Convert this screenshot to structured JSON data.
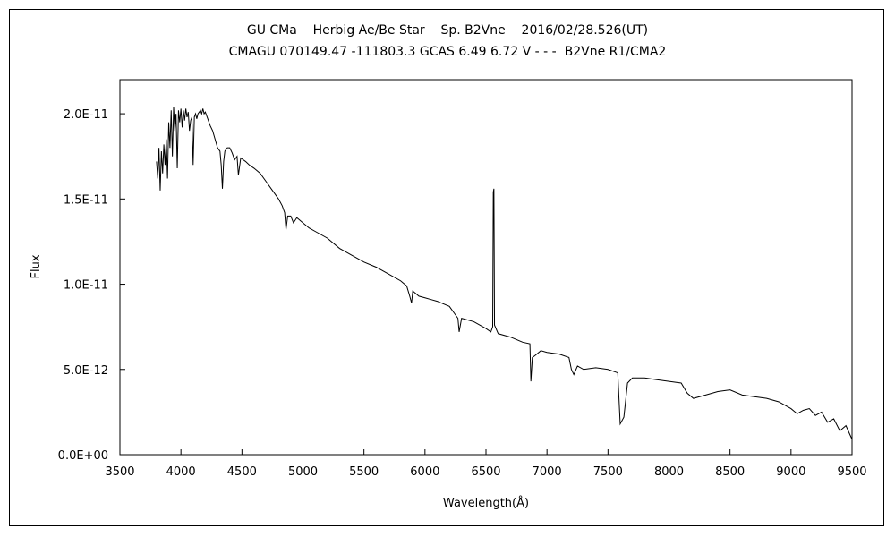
{
  "chart_data": {
    "type": "line",
    "title": "GU CMa    Herbig Ae/Be Star    Sp. B2Vne    2016/02/28.526(UT)",
    "subtitle": "CMAGU 070149.47 -111803.3 GCAS 6.49 6.72 V - - -  B2Vne R1/CMA2",
    "xlabel": "Wavelength(Å)",
    "ylabel": "Flux",
    "xlim": [
      3500,
      9500
    ],
    "ylim": [
      0,
      2.2e-11
    ],
    "grid": false,
    "x_ticks": [
      3500,
      4000,
      4500,
      5000,
      5500,
      6000,
      6500,
      7000,
      7500,
      8000,
      8500,
      9000,
      9500
    ],
    "x_tick_labels": [
      "3500",
      "4000",
      "4500",
      "5000",
      "5500",
      "6000",
      "6500",
      "7000",
      "7500",
      "8000",
      "8500",
      "9000",
      "9500"
    ],
    "y_ticks": [
      0,
      5e-12,
      1e-11,
      1.5e-11,
      2e-11
    ],
    "y_tick_labels": [
      "0.0E+00",
      "5.0E-12",
      "1.0E-11",
      "1.5E-11",
      "2.0E-11"
    ],
    "series": [
      {
        "color": "#000000",
        "points": [
          [
            3800,
            1.72e-11
          ],
          [
            3810,
            1.62e-11
          ],
          [
            3820,
            1.8e-11
          ],
          [
            3830,
            1.55e-11
          ],
          [
            3840,
            1.78e-11
          ],
          [
            3850,
            1.65e-11
          ],
          [
            3860,
            1.82e-11
          ],
          [
            3870,
            1.7e-11
          ],
          [
            3880,
            1.85e-11
          ],
          [
            3890,
            1.62e-11
          ],
          [
            3900,
            1.95e-11
          ],
          [
            3910,
            1.8e-11
          ],
          [
            3920,
            2.02e-11
          ],
          [
            3930,
            1.75e-11
          ],
          [
            3940,
            2.04e-11
          ],
          [
            3950,
            1.9e-11
          ],
          [
            3960,
            2e-11
          ],
          [
            3970,
            1.68e-11
          ],
          [
            3980,
            2.02e-11
          ],
          [
            3990,
            1.95e-11
          ],
          [
            4000,
            2.03e-11
          ],
          [
            4010,
            1.92e-11
          ],
          [
            4020,
            2.02e-11
          ],
          [
            4030,
            1.96e-11
          ],
          [
            4040,
            2.03e-11
          ],
          [
            4050,
            1.98e-11
          ],
          [
            4060,
            2.01e-11
          ],
          [
            4070,
            1.9e-11
          ],
          [
            4080,
            1.96e-11
          ],
          [
            4090,
            1.98e-11
          ],
          [
            4100,
            1.7e-11
          ],
          [
            4110,
            1.98e-11
          ],
          [
            4120,
            2e-11
          ],
          [
            4130,
            1.97e-11
          ],
          [
            4140,
            2e-11
          ],
          [
            4150,
            2.01e-11
          ],
          [
            4160,
            2.02e-11
          ],
          [
            4170,
            2e-11
          ],
          [
            4180,
            2.03e-11
          ],
          [
            4190,
            2e-11
          ],
          [
            4200,
            2.01e-11
          ],
          [
            4220,
            1.97e-11
          ],
          [
            4240,
            1.93e-11
          ],
          [
            4260,
            1.9e-11
          ],
          [
            4280,
            1.85e-11
          ],
          [
            4300,
            1.8e-11
          ],
          [
            4320,
            1.78e-11
          ],
          [
            4330,
            1.7e-11
          ],
          [
            4340,
            1.56e-11
          ],
          [
            4350,
            1.72e-11
          ],
          [
            4360,
            1.78e-11
          ],
          [
            4380,
            1.8e-11
          ],
          [
            4400,
            1.8e-11
          ],
          [
            4420,
            1.77e-11
          ],
          [
            4440,
            1.73e-11
          ],
          [
            4460,
            1.75e-11
          ],
          [
            4471,
            1.64e-11
          ],
          [
            4490,
            1.74e-11
          ],
          [
            4510,
            1.73e-11
          ],
          [
            4530,
            1.72e-11
          ],
          [
            4560,
            1.7e-11
          ],
          [
            4600,
            1.68e-11
          ],
          [
            4650,
            1.65e-11
          ],
          [
            4700,
            1.6e-11
          ],
          [
            4750,
            1.55e-11
          ],
          [
            4800,
            1.5e-11
          ],
          [
            4830,
            1.46e-11
          ],
          [
            4850,
            1.42e-11
          ],
          [
            4861,
            1.32e-11
          ],
          [
            4875,
            1.4e-11
          ],
          [
            4900,
            1.4e-11
          ],
          [
            4922,
            1.36e-11
          ],
          [
            4950,
            1.39e-11
          ],
          [
            5000,
            1.36e-11
          ],
          [
            5050,
            1.33e-11
          ],
          [
            5100,
            1.31e-11
          ],
          [
            5200,
            1.27e-11
          ],
          [
            5300,
            1.21e-11
          ],
          [
            5400,
            1.17e-11
          ],
          [
            5500,
            1.13e-11
          ],
          [
            5600,
            1.1e-11
          ],
          [
            5700,
            1.06e-11
          ],
          [
            5800,
            1.02e-11
          ],
          [
            5850,
            9.9e-12
          ],
          [
            5875,
            9.3e-12
          ],
          [
            5890,
            8.9e-12
          ],
          [
            5900,
            9.6e-12
          ],
          [
            5950,
            9.3e-12
          ],
          [
            6000,
            9.2e-12
          ],
          [
            6050,
            9.1e-12
          ],
          [
            6100,
            9e-12
          ],
          [
            6200,
            8.7e-12
          ],
          [
            6270,
            8e-12
          ],
          [
            6280,
            7.2e-12
          ],
          [
            6300,
            8e-12
          ],
          [
            6400,
            7.8e-12
          ],
          [
            6500,
            7.4e-12
          ],
          [
            6540,
            7.2e-12
          ],
          [
            6555,
            7.5e-12
          ],
          [
            6560,
            1.54e-11
          ],
          [
            6565,
            1.56e-11
          ],
          [
            6570,
            7.6e-12
          ],
          [
            6600,
            7.1e-12
          ],
          [
            6700,
            6.9e-12
          ],
          [
            6800,
            6.6e-12
          ],
          [
            6860,
            6.5e-12
          ],
          [
            6868,
            4.3e-12
          ],
          [
            6880,
            5.7e-12
          ],
          [
            6900,
            5.8e-12
          ],
          [
            6950,
            6.1e-12
          ],
          [
            7000,
            6e-12
          ],
          [
            7100,
            5.9e-12
          ],
          [
            7180,
            5.7e-12
          ],
          [
            7200,
            5e-12
          ],
          [
            7220,
            4.7e-12
          ],
          [
            7250,
            5.2e-12
          ],
          [
            7300,
            5e-12
          ],
          [
            7400,
            5.1e-12
          ],
          [
            7500,
            5e-12
          ],
          [
            7580,
            4.8e-12
          ],
          [
            7600,
            1.8e-12
          ],
          [
            7630,
            2.2e-12
          ],
          [
            7660,
            4.2e-12
          ],
          [
            7700,
            4.5e-12
          ],
          [
            7800,
            4.5e-12
          ],
          [
            7900,
            4.4e-12
          ],
          [
            8000,
            4.3e-12
          ],
          [
            8100,
            4.2e-12
          ],
          [
            8150,
            3.6e-12
          ],
          [
            8200,
            3.3e-12
          ],
          [
            8300,
            3.5e-12
          ],
          [
            8400,
            3.7e-12
          ],
          [
            8500,
            3.8e-12
          ],
          [
            8600,
            3.5e-12
          ],
          [
            8700,
            3.4e-12
          ],
          [
            8800,
            3.3e-12
          ],
          [
            8900,
            3.1e-12
          ],
          [
            9000,
            2.7e-12
          ],
          [
            9050,
            2.4e-12
          ],
          [
            9100,
            2.6e-12
          ],
          [
            9150,
            2.7e-12
          ],
          [
            9200,
            2.3e-12
          ],
          [
            9250,
            2.5e-12
          ],
          [
            9300,
            1.9e-12
          ],
          [
            9350,
            2.1e-12
          ],
          [
            9400,
            1.4e-12
          ],
          [
            9450,
            1.7e-12
          ],
          [
            9500,
            9e-13
          ]
        ]
      }
    ]
  }
}
